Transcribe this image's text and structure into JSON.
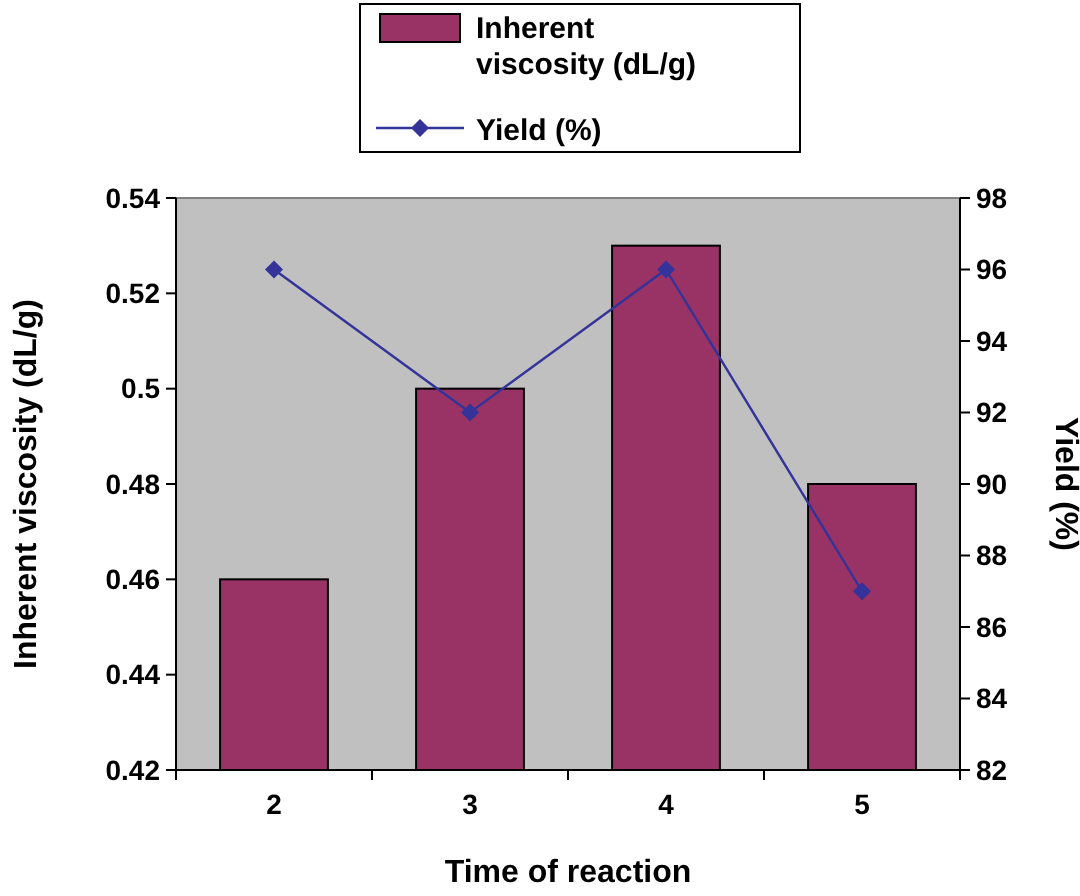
{
  "chart_data": {
    "type": "bar",
    "xlabel": "Time of reaction",
    "ylabel": "Inherent viscosity (dL/g)",
    "y2label": "Yield (%)",
    "categories": [
      "2",
      "3",
      "4",
      "5"
    ],
    "series": [
      {
        "name": "Inherent viscosity (dL/g)",
        "color": "#993366",
        "values": [
          0.46,
          0.5,
          0.53,
          0.48
        ]
      },
      {
        "name": "Yield (%)",
        "type": "line",
        "axis": "y2",
        "color": "#333399",
        "marker": "diamond",
        "values": [
          96,
          92,
          96,
          87
        ]
      }
    ],
    "ylim": [
      0.42,
      0.54
    ],
    "yticks": [
      0.42,
      0.44,
      0.46,
      0.48,
      0.5,
      0.52,
      0.54
    ],
    "y2lim": [
      82,
      98
    ],
    "y2ticks": [
      82,
      84,
      86,
      88,
      90,
      92,
      94,
      96,
      98
    ],
    "legend": "top",
    "grid": false
  }
}
